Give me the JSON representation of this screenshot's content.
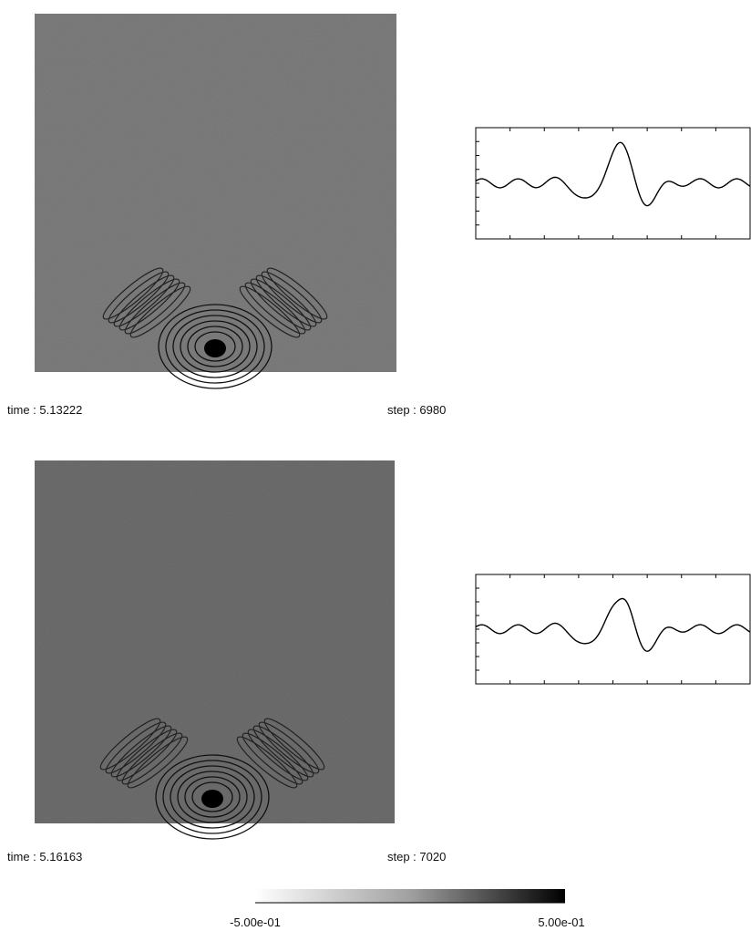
{
  "panels": [
    {
      "time": "time : 5.13222",
      "step": "step : 6980"
    },
    {
      "time": "time : 5.16163",
      "step": "step : 7020"
    }
  ],
  "colorbar": {
    "min_label": "-5.00e-01",
    "max_label": "5.00e-01"
  }
}
